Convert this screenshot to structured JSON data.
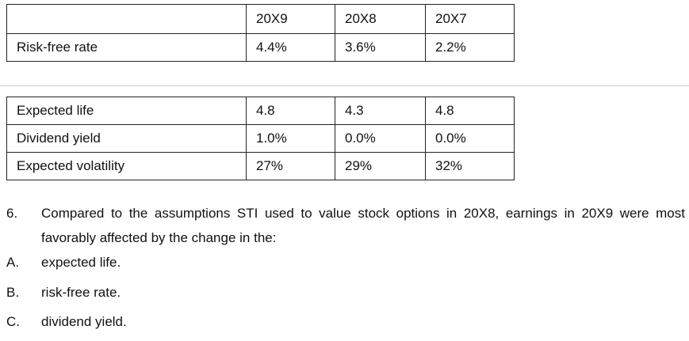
{
  "table1": {
    "header": [
      "20X9",
      "20X8",
      "20X7"
    ],
    "rows": [
      [
        "Risk-free rate",
        "4.4%",
        "3.6%",
        "2.2%"
      ]
    ]
  },
  "table2": {
    "rows": [
      [
        "Expected life",
        "4.8",
        "4.3",
        "4.8"
      ],
      [
        "Dividend yield",
        "1.0%",
        "0.0%",
        "0.0%"
      ],
      [
        "Expected volatility",
        "27%",
        "29%",
        "32%"
      ]
    ]
  },
  "question": {
    "number": "6.",
    "text": "Compared to the assumptions STI used to value stock options in 20X8, earnings in 20X9 were most favorably affected by the change in the:",
    "options": [
      {
        "letter": "A.",
        "text": "expected life."
      },
      {
        "letter": "B.",
        "text": "risk-free rate."
      },
      {
        "letter": "C.",
        "text": "dividend yield."
      }
    ]
  }
}
